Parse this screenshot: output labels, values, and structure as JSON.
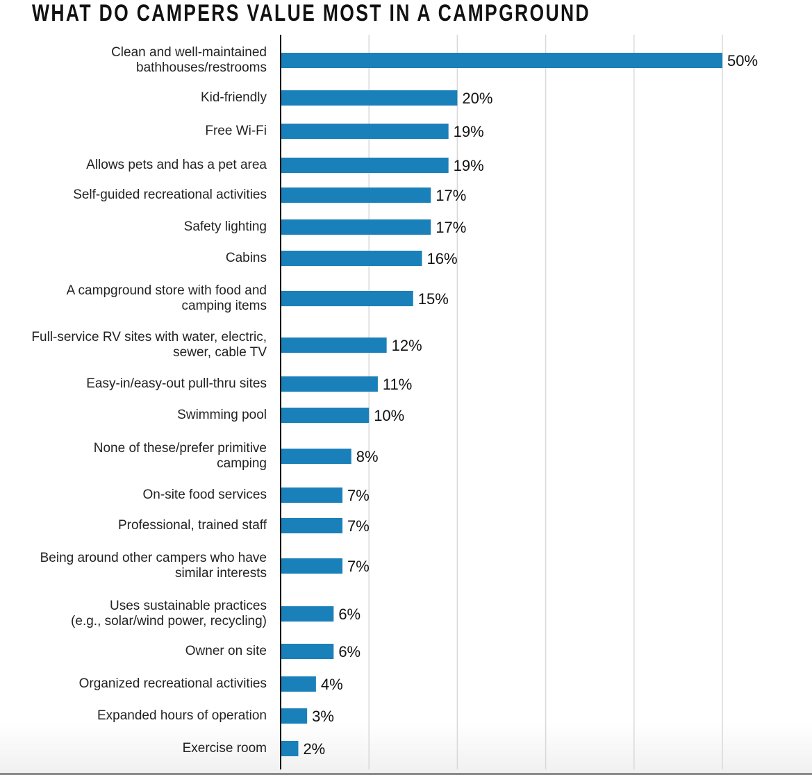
{
  "chart_data": {
    "type": "bar",
    "orientation": "horizontal",
    "title": "WHAT DO CAMPERS VALUE MOST IN A CAMPGROUND",
    "categories": [
      "Clean and well-maintained\nbathhouses/restrooms",
      "Kid-friendly",
      "Free Wi-Fi",
      "Allows pets and has a pet area",
      "Self-guided recreational activities",
      "Safety lighting",
      "Cabins",
      "A campground store with food and\ncamping items",
      "Full-service RV sites with water, electric,\nsewer, cable TV",
      "Easy-in/easy-out pull-thru sites",
      "Swimming pool",
      "None of these/prefer primitive\ncamping",
      "On-site food services",
      "Professional, trained staff",
      "Being around other campers who have\nsimilar interests",
      "Uses sustainable practices\n(e.g., solar/wind power, recycling)",
      "Owner on site",
      "Organized recreational activities",
      "Expanded hours of operation",
      "Exercise room"
    ],
    "values": [
      50,
      20,
      19,
      19,
      17,
      17,
      16,
      15,
      12,
      11,
      10,
      8,
      7,
      7,
      7,
      6,
      6,
      4,
      3,
      2
    ],
    "data_labels": [
      "50%",
      "20%",
      "19%",
      "19%",
      "17%",
      "17%",
      "16%",
      "15%",
      "12%",
      "11%",
      "10%",
      "8%",
      "7%",
      "7%",
      "7%",
      "6%",
      "6%",
      "4%",
      "3%",
      "2%"
    ],
    "xlim": [
      0,
      50
    ],
    "grid": true,
    "xlabel": "",
    "ylabel": "",
    "bar_color": "#1a80b9"
  }
}
